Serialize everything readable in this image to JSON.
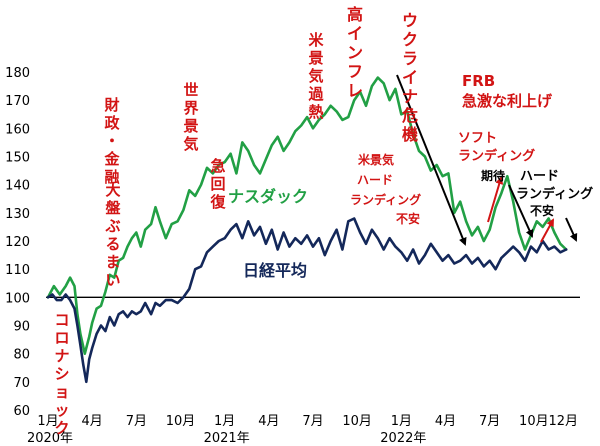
{
  "chart_data": {
    "type": "line",
    "ylim": [
      60,
      180
    ],
    "yticks": [
      60,
      70,
      80,
      90,
      100,
      110,
      120,
      130,
      140,
      150,
      160,
      170,
      180
    ],
    "xlim": [
      0,
      36
    ],
    "xticks": [
      {
        "pos": 0,
        "label": "1月",
        "year": "2020年"
      },
      {
        "pos": 3,
        "label": "4月"
      },
      {
        "pos": 6,
        "label": "7月"
      },
      {
        "pos": 9,
        "label": "10月"
      },
      {
        "pos": 12,
        "label": "1月",
        "year": "2021年"
      },
      {
        "pos": 15,
        "label": "4月"
      },
      {
        "pos": 18,
        "label": "7月"
      },
      {
        "pos": 21,
        "label": "10月"
      },
      {
        "pos": 24,
        "label": "1月",
        "year": "2022年"
      },
      {
        "pos": 27,
        "label": "4月"
      },
      {
        "pos": 30,
        "label": "7月"
      },
      {
        "pos": 33,
        "label": "10月"
      },
      {
        "pos": 35,
        "label": "12月"
      }
    ],
    "baseline": 100,
    "series": [
      {
        "name": "ナスダック",
        "color": "#22a045",
        "points": [
          [
            0,
            100
          ],
          [
            0.4,
            104
          ],
          [
            0.8,
            101
          ],
          [
            1.2,
            104
          ],
          [
            1.5,
            107
          ],
          [
            1.8,
            104
          ],
          [
            2.0,
            94
          ],
          [
            2.2,
            87
          ],
          [
            2.5,
            80
          ],
          [
            2.8,
            86
          ],
          [
            3.0,
            91
          ],
          [
            3.3,
            96
          ],
          [
            3.6,
            97
          ],
          [
            3.9,
            102
          ],
          [
            4.2,
            108
          ],
          [
            4.5,
            107
          ],
          [
            4.8,
            113
          ],
          [
            5.1,
            114
          ],
          [
            5.4,
            118
          ],
          [
            5.7,
            121
          ],
          [
            6.0,
            123
          ],
          [
            6.3,
            118
          ],
          [
            6.6,
            124
          ],
          [
            7.0,
            126
          ],
          [
            7.3,
            132
          ],
          [
            7.6,
            127
          ],
          [
            8.0,
            121
          ],
          [
            8.4,
            126
          ],
          [
            8.8,
            127
          ],
          [
            9.2,
            131
          ],
          [
            9.6,
            138
          ],
          [
            10.0,
            136
          ],
          [
            10.4,
            140
          ],
          [
            10.8,
            146
          ],
          [
            11.2,
            144
          ],
          [
            11.6,
            147
          ],
          [
            12.0,
            148
          ],
          [
            12.4,
            151
          ],
          [
            12.8,
            144
          ],
          [
            13.2,
            155
          ],
          [
            13.6,
            152
          ],
          [
            14.0,
            147
          ],
          [
            14.4,
            144
          ],
          [
            14.8,
            149
          ],
          [
            15.2,
            154
          ],
          [
            15.6,
            157
          ],
          [
            16.0,
            152
          ],
          [
            16.4,
            155
          ],
          [
            16.8,
            159
          ],
          [
            17.2,
            161
          ],
          [
            17.6,
            164
          ],
          [
            18.0,
            160
          ],
          [
            18.4,
            163
          ],
          [
            18.8,
            165
          ],
          [
            19.2,
            168
          ],
          [
            19.6,
            166
          ],
          [
            20.0,
            163
          ],
          [
            20.4,
            164
          ],
          [
            20.8,
            170
          ],
          [
            21.2,
            173
          ],
          [
            21.6,
            168
          ],
          [
            22.0,
            175
          ],
          [
            22.4,
            178
          ],
          [
            22.8,
            176
          ],
          [
            23.2,
            170
          ],
          [
            23.6,
            174
          ],
          [
            24.0,
            165
          ],
          [
            24.4,
            166
          ],
          [
            24.8,
            158
          ],
          [
            25.2,
            152
          ],
          [
            25.6,
            150
          ],
          [
            26.0,
            145
          ],
          [
            26.4,
            147
          ],
          [
            26.8,
            143
          ],
          [
            27.2,
            144
          ],
          [
            27.6,
            130
          ],
          [
            28.0,
            134
          ],
          [
            28.4,
            127
          ],
          [
            28.8,
            122
          ],
          [
            29.2,
            125
          ],
          [
            29.6,
            120
          ],
          [
            30.0,
            124
          ],
          [
            30.4,
            132
          ],
          [
            30.8,
            137
          ],
          [
            31.2,
            143
          ],
          [
            31.6,
            134
          ],
          [
            32.0,
            123
          ],
          [
            32.4,
            117
          ],
          [
            32.8,
            122
          ],
          [
            33.2,
            127
          ],
          [
            33.6,
            125
          ],
          [
            34.0,
            128
          ],
          [
            34.4,
            123
          ],
          [
            34.8,
            119
          ],
          [
            35.2,
            117
          ]
        ]
      },
      {
        "name": "日経平均",
        "color": "#14285a",
        "points": [
          [
            0,
            100
          ],
          [
            0.3,
            101
          ],
          [
            0.6,
            99
          ],
          [
            0.9,
            99
          ],
          [
            1.2,
            101
          ],
          [
            1.5,
            99
          ],
          [
            1.8,
            96
          ],
          [
            2.0,
            90
          ],
          [
            2.2,
            83
          ],
          [
            2.4,
            76
          ],
          [
            2.6,
            70
          ],
          [
            2.8,
            78
          ],
          [
            3.0,
            82
          ],
          [
            3.3,
            87
          ],
          [
            3.6,
            90
          ],
          [
            3.9,
            88
          ],
          [
            4.2,
            93
          ],
          [
            4.5,
            90
          ],
          [
            4.8,
            94
          ],
          [
            5.1,
            95
          ],
          [
            5.4,
            93
          ],
          [
            5.7,
            95
          ],
          [
            6.0,
            94
          ],
          [
            6.3,
            95
          ],
          [
            6.6,
            98
          ],
          [
            7.0,
            94
          ],
          [
            7.3,
            98
          ],
          [
            7.6,
            97
          ],
          [
            8.0,
            99
          ],
          [
            8.4,
            99
          ],
          [
            8.8,
            98
          ],
          [
            9.2,
            100
          ],
          [
            9.6,
            103
          ],
          [
            10.0,
            110
          ],
          [
            10.4,
            111
          ],
          [
            10.8,
            116
          ],
          [
            11.2,
            118
          ],
          [
            11.6,
            120
          ],
          [
            12.0,
            121
          ],
          [
            12.4,
            124
          ],
          [
            12.8,
            126
          ],
          [
            13.2,
            121
          ],
          [
            13.6,
            127
          ],
          [
            14.0,
            122
          ],
          [
            14.4,
            125
          ],
          [
            14.8,
            119
          ],
          [
            15.2,
            124
          ],
          [
            15.6,
            117
          ],
          [
            16.0,
            123
          ],
          [
            16.4,
            118
          ],
          [
            16.8,
            121
          ],
          [
            17.2,
            119
          ],
          [
            17.6,
            122
          ],
          [
            18.0,
            118
          ],
          [
            18.4,
            121
          ],
          [
            18.8,
            115
          ],
          [
            19.2,
            120
          ],
          [
            19.6,
            124
          ],
          [
            20.0,
            117
          ],
          [
            20.4,
            127
          ],
          [
            20.8,
            128
          ],
          [
            21.2,
            123
          ],
          [
            21.6,
            119
          ],
          [
            22.0,
            124
          ],
          [
            22.4,
            121
          ],
          [
            22.8,
            117
          ],
          [
            23.2,
            121
          ],
          [
            23.6,
            118
          ],
          [
            24.0,
            116
          ],
          [
            24.4,
            113
          ],
          [
            24.8,
            117
          ],
          [
            25.2,
            112
          ],
          [
            25.6,
            115
          ],
          [
            26.0,
            119
          ],
          [
            26.4,
            116
          ],
          [
            26.8,
            113
          ],
          [
            27.2,
            115
          ],
          [
            27.6,
            112
          ],
          [
            28.0,
            113
          ],
          [
            28.4,
            115
          ],
          [
            28.8,
            112
          ],
          [
            29.2,
            114
          ],
          [
            29.6,
            111
          ],
          [
            30.0,
            113
          ],
          [
            30.4,
            110
          ],
          [
            30.8,
            114
          ],
          [
            31.2,
            116
          ],
          [
            31.6,
            118
          ],
          [
            32.0,
            116
          ],
          [
            32.4,
            113
          ],
          [
            32.8,
            118
          ],
          [
            33.2,
            116
          ],
          [
            33.6,
            120
          ],
          [
            34.0,
            117
          ],
          [
            34.4,
            118
          ],
          [
            34.8,
            116
          ],
          [
            35.2,
            117
          ]
        ]
      }
    ]
  },
  "labels": {
    "nasdaq": "ナスダック",
    "nikkei": "日経平均"
  },
  "annotations": [
    {
      "id": "corona",
      "text": "コロナショック",
      "vertical": true,
      "color": "#d21414"
    },
    {
      "id": "fiscal",
      "text": "財政・金融",
      "vertical": true,
      "color": "#d21414"
    },
    {
      "id": "ohburumai",
      "text": "大盤ぶるまい",
      "vertical": true,
      "color": "#d21414"
    },
    {
      "id": "sekai",
      "text": "世界景気",
      "vertical": true,
      "color": "#d21414"
    },
    {
      "id": "kyukaifuku",
      "text": "急回復",
      "vertical": true,
      "color": "#d21414"
    },
    {
      "id": "overheat",
      "text": "米景気過熱",
      "vertical": true,
      "color": "#d21414"
    },
    {
      "id": "highinfl",
      "text": "高インフレ",
      "vertical": true,
      "color": "#d21414"
    },
    {
      "id": "ukraine",
      "text": "ウクライナ危機",
      "vertical": true,
      "color": "#d21414"
    },
    {
      "id": "frb1",
      "text": "FRB",
      "vertical": false,
      "color": "#d21414"
    },
    {
      "id": "frb2",
      "text": "急激な利上げ",
      "vertical": false,
      "color": "#d21414"
    },
    {
      "id": "usecon1",
      "text": "米景気",
      "vertical": false,
      "color": "#d21414"
    },
    {
      "id": "usecon2",
      "text": "ハード",
      "vertical": false,
      "color": "#d21414"
    },
    {
      "id": "usecon3",
      "text": "ランディング",
      "vertical": false,
      "color": "#d21414"
    },
    {
      "id": "usecon4",
      "text": "不安",
      "vertical": false,
      "color": "#d21414"
    },
    {
      "id": "soft1",
      "text": "ソフト",
      "vertical": false,
      "color": "#d21414"
    },
    {
      "id": "soft2",
      "text": "ランディング",
      "vertical": false,
      "color": "#d21414"
    },
    {
      "id": "soft3",
      "text": "期待",
      "vertical": false,
      "color": "#000000"
    },
    {
      "id": "hard1",
      "text": "ハード",
      "vertical": false,
      "color": "#000000"
    },
    {
      "id": "hard2",
      "text": "ランディング",
      "vertical": false,
      "color": "#000000"
    },
    {
      "id": "hard3",
      "text": "不安",
      "vertical": false,
      "color": "#000000"
    }
  ]
}
